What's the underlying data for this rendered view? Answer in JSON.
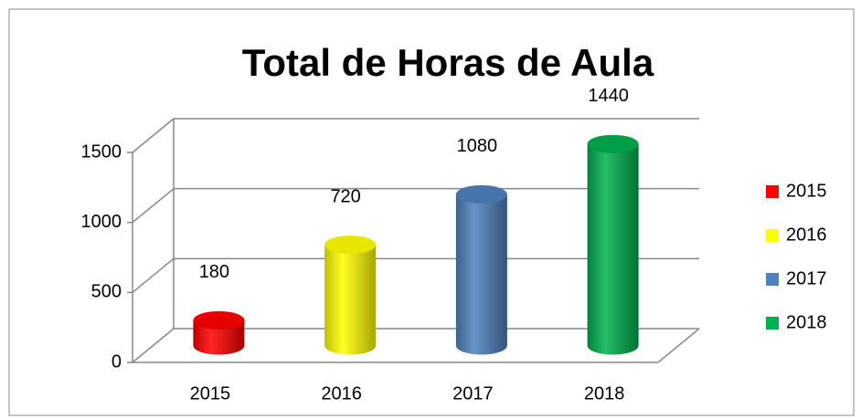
{
  "chart_data": {
    "type": "bar",
    "title": "Total de Horas de Aula",
    "categories": [
      "2015",
      "2016",
      "2017",
      "2018"
    ],
    "values": [
      180,
      720,
      1080,
      1440
    ],
    "colors": [
      "#ff0000",
      "#ffff00",
      "#4f81bd",
      "#00b050"
    ],
    "ylim": [
      0,
      1500
    ],
    "yticks": [
      0,
      500,
      1000,
      1500
    ],
    "grid": true,
    "legend": "right"
  }
}
